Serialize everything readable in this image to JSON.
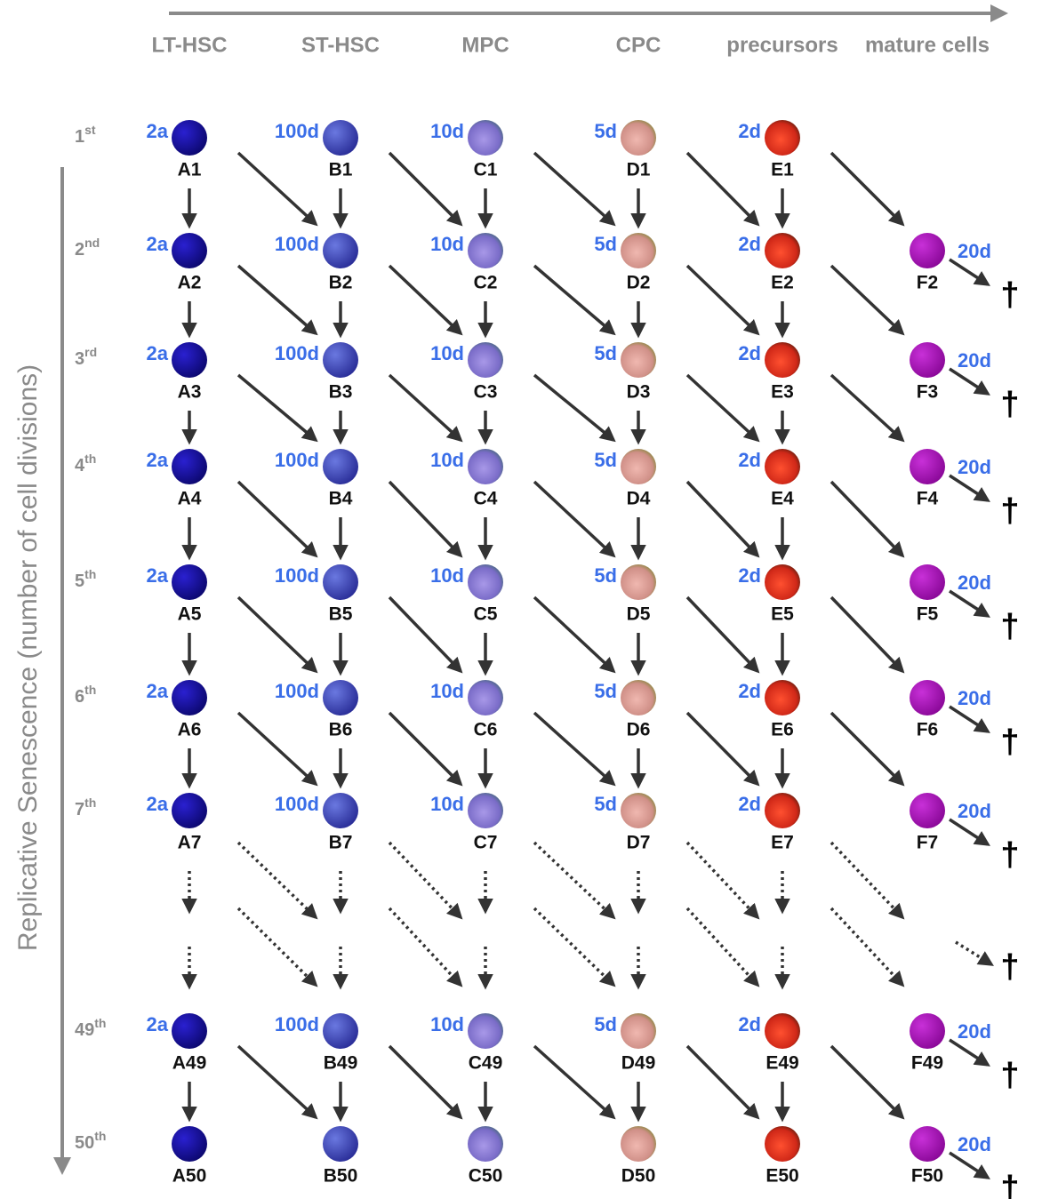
{
  "axis_label": "Replicative Senescence (number of cell divisions)",
  "columns": [
    "LT-HSC",
    "ST-HSC",
    "MPC",
    "CPC",
    "precursors",
    "mature cells"
  ],
  "death_symbol": "†",
  "rows": [
    {
      "ordinal": {
        "num": "1",
        "suffix": "st"
      },
      "cells": [
        {
          "label": "A1",
          "lifetime": "2a"
        },
        {
          "label": "B1",
          "lifetime": "100d"
        },
        {
          "label": "C1",
          "lifetime": "10d"
        },
        {
          "label": "D1",
          "lifetime": "5d"
        },
        {
          "label": "E1",
          "lifetime": "2d"
        }
      ]
    },
    {
      "ordinal": {
        "num": "2",
        "suffix": "nd"
      },
      "cells": [
        {
          "label": "A2",
          "lifetime": "2a"
        },
        {
          "label": "B2",
          "lifetime": "100d"
        },
        {
          "label": "C2",
          "lifetime": "10d"
        },
        {
          "label": "D2",
          "lifetime": "5d"
        },
        {
          "label": "E2",
          "lifetime": "2d"
        },
        {
          "label": "F2",
          "lifetime": "20d"
        }
      ]
    },
    {
      "ordinal": {
        "num": "3",
        "suffix": "rd"
      },
      "cells": [
        {
          "label": "A3",
          "lifetime": "2a"
        },
        {
          "label": "B3",
          "lifetime": "100d"
        },
        {
          "label": "C3",
          "lifetime": "10d"
        },
        {
          "label": "D3",
          "lifetime": "5d"
        },
        {
          "label": "E3",
          "lifetime": "2d"
        },
        {
          "label": "F3",
          "lifetime": "20d"
        }
      ]
    },
    {
      "ordinal": {
        "num": "4",
        "suffix": "th"
      },
      "cells": [
        {
          "label": "A4",
          "lifetime": "2a"
        },
        {
          "label": "B4",
          "lifetime": "100d"
        },
        {
          "label": "C4",
          "lifetime": "10d"
        },
        {
          "label": "D4",
          "lifetime": "5d"
        },
        {
          "label": "E4",
          "lifetime": "2d"
        },
        {
          "label": "F4",
          "lifetime": "20d"
        }
      ]
    },
    {
      "ordinal": {
        "num": "5",
        "suffix": "th"
      },
      "cells": [
        {
          "label": "A5",
          "lifetime": "2a"
        },
        {
          "label": "B5",
          "lifetime": "100d"
        },
        {
          "label": "C5",
          "lifetime": "10d"
        },
        {
          "label": "D5",
          "lifetime": "5d"
        },
        {
          "label": "E5",
          "lifetime": "2d"
        },
        {
          "label": "F5",
          "lifetime": "20d"
        }
      ]
    },
    {
      "ordinal": {
        "num": "6",
        "suffix": "th"
      },
      "cells": [
        {
          "label": "A6",
          "lifetime": "2a"
        },
        {
          "label": "B6",
          "lifetime": "100d"
        },
        {
          "label": "C6",
          "lifetime": "10d"
        },
        {
          "label": "D6",
          "lifetime": "5d"
        },
        {
          "label": "E6",
          "lifetime": "2d"
        },
        {
          "label": "F6",
          "lifetime": "20d"
        }
      ]
    },
    {
      "ordinal": {
        "num": "7",
        "suffix": "th"
      },
      "cells": [
        {
          "label": "A7",
          "lifetime": "2a"
        },
        {
          "label": "B7",
          "lifetime": "100d"
        },
        {
          "label": "C7",
          "lifetime": "10d"
        },
        {
          "label": "D7",
          "lifetime": "5d"
        },
        {
          "label": "E7",
          "lifetime": "2d"
        },
        {
          "label": "F7",
          "lifetime": "20d"
        }
      ]
    },
    {
      "ordinal": {
        "num": "49",
        "suffix": "th"
      },
      "cells": [
        {
          "label": "A49",
          "lifetime": "2a"
        },
        {
          "label": "B49",
          "lifetime": "100d"
        },
        {
          "label": "C49",
          "lifetime": "10d"
        },
        {
          "label": "D49",
          "lifetime": "5d"
        },
        {
          "label": "E49",
          "lifetime": "2d"
        },
        {
          "label": "F49",
          "lifetime": "20d"
        }
      ]
    },
    {
      "ordinal": {
        "num": "50",
        "suffix": "th"
      },
      "cells": [
        {
          "label": "A50"
        },
        {
          "label": "B50"
        },
        {
          "label": "C50"
        },
        {
          "label": "D50"
        },
        {
          "label": "E50"
        },
        {
          "label": "F50",
          "lifetime": "20d"
        }
      ]
    }
  ]
}
